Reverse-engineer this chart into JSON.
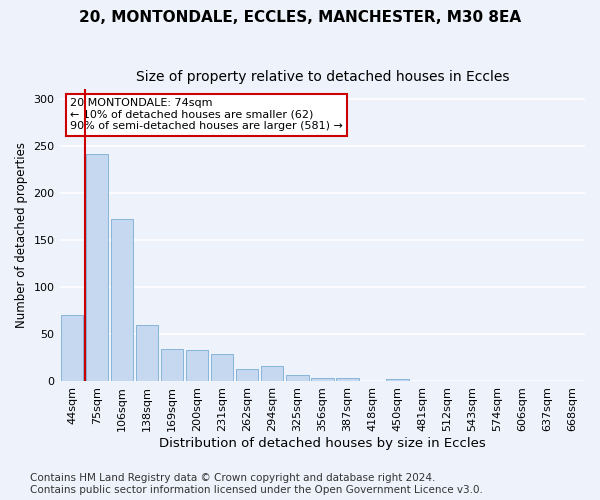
{
  "title1": "20, MONTONDALE, ECCLES, MANCHESTER, M30 8EA",
  "title2": "Size of property relative to detached houses in Eccles",
  "xlabel": "Distribution of detached houses by size in Eccles",
  "ylabel": "Number of detached properties",
  "categories": [
    "44sqm",
    "75sqm",
    "106sqm",
    "138sqm",
    "169sqm",
    "200sqm",
    "231sqm",
    "262sqm",
    "294sqm",
    "325sqm",
    "356sqm",
    "387sqm",
    "418sqm",
    "450sqm",
    "481sqm",
    "512sqm",
    "543sqm",
    "574sqm",
    "606sqm",
    "637sqm",
    "668sqm"
  ],
  "values": [
    71,
    241,
    172,
    60,
    34,
    33,
    29,
    13,
    16,
    7,
    4,
    4,
    0,
    3,
    0,
    0,
    0,
    0,
    0,
    1,
    0
  ],
  "bar_color": "#c5d8f0",
  "bar_edge_color": "#7aadd4",
  "annotation_text": "20 MONTONDALE: 74sqm\n← 10% of detached houses are smaller (62)\n90% of semi-detached houses are larger (581) →",
  "annotation_box_color": "#ffffff",
  "annotation_box_edge_color": "#cc0000",
  "red_line_x": 0.5,
  "ylim": [
    0,
    310
  ],
  "yticks": [
    0,
    50,
    100,
    150,
    200,
    250,
    300
  ],
  "background_color": "#eef2fa",
  "grid_color": "#ffffff",
  "title1_fontsize": 11,
  "title2_fontsize": 10,
  "xlabel_fontsize": 9.5,
  "ylabel_fontsize": 8.5,
  "tick_fontsize": 8,
  "footer_fontsize": 7.5,
  "footer_line1": "Contains HM Land Registry data © Crown copyright and database right 2024.",
  "footer_line2": "Contains public sector information licensed under the Open Government Licence v3.0."
}
